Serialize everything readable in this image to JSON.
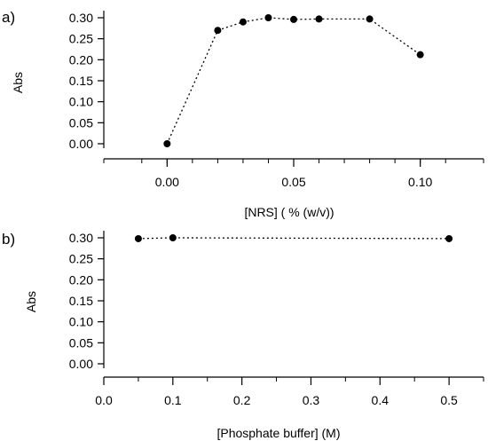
{
  "chart_data": [
    {
      "panel_label": "a)",
      "type": "scatter",
      "line_style": "dotted",
      "xlabel": "[NRS] ( % (w/v))",
      "ylabel": "Abs",
      "xlim": [
        -0.025,
        0.125
      ],
      "ylim": [
        0,
        0.3
      ],
      "xticks": [
        0.0,
        0.05,
        0.1
      ],
      "xtick_labels": [
        "0.00",
        "0.05",
        "0.10"
      ],
      "x_minor_ticks": [
        -0.025,
        -0.01,
        0.0,
        0.01,
        0.02,
        0.03,
        0.04,
        0.05,
        0.06,
        0.07,
        0.08,
        0.09,
        0.1,
        0.11,
        0.125
      ],
      "yticks": [
        0.0,
        0.05,
        0.1,
        0.15,
        0.2,
        0.25,
        0.3
      ],
      "ytick_labels": [
        "0.00",
        "0.05",
        "0.10",
        "0.15",
        "0.20",
        "0.25",
        "0.30"
      ],
      "grid": false,
      "x": [
        0.0,
        0.02,
        0.03,
        0.04,
        0.05,
        0.06,
        0.08,
        0.1
      ],
      "y": [
        0.0,
        0.27,
        0.29,
        0.3,
        0.296,
        0.297,
        0.297,
        0.212
      ]
    },
    {
      "panel_label": "b)",
      "type": "scatter",
      "line_style": "dotted",
      "xlabel": "[Phosphate buffer] (M)",
      "ylabel": "Abs",
      "xlim": [
        0.0,
        0.55
      ],
      "ylim": [
        0,
        0.3
      ],
      "xticks": [
        0.0,
        0.1,
        0.2,
        0.3,
        0.4,
        0.5
      ],
      "xtick_labels": [
        "0.0",
        "0.1",
        "0.2",
        "0.3",
        "0.4",
        "0.5"
      ],
      "x_minor_ticks": [
        0.05,
        0.15,
        0.25,
        0.35,
        0.45,
        0.55
      ],
      "yticks": [
        0.0,
        0.05,
        0.1,
        0.15,
        0.2,
        0.25,
        0.3
      ],
      "ytick_labels": [
        "0.00",
        "0.05",
        "0.10",
        "0.15",
        "0.20",
        "0.25",
        "0.30"
      ],
      "grid": false,
      "x": [
        0.05,
        0.1,
        0.5
      ],
      "y": [
        0.298,
        0.3,
        0.298
      ]
    }
  ]
}
